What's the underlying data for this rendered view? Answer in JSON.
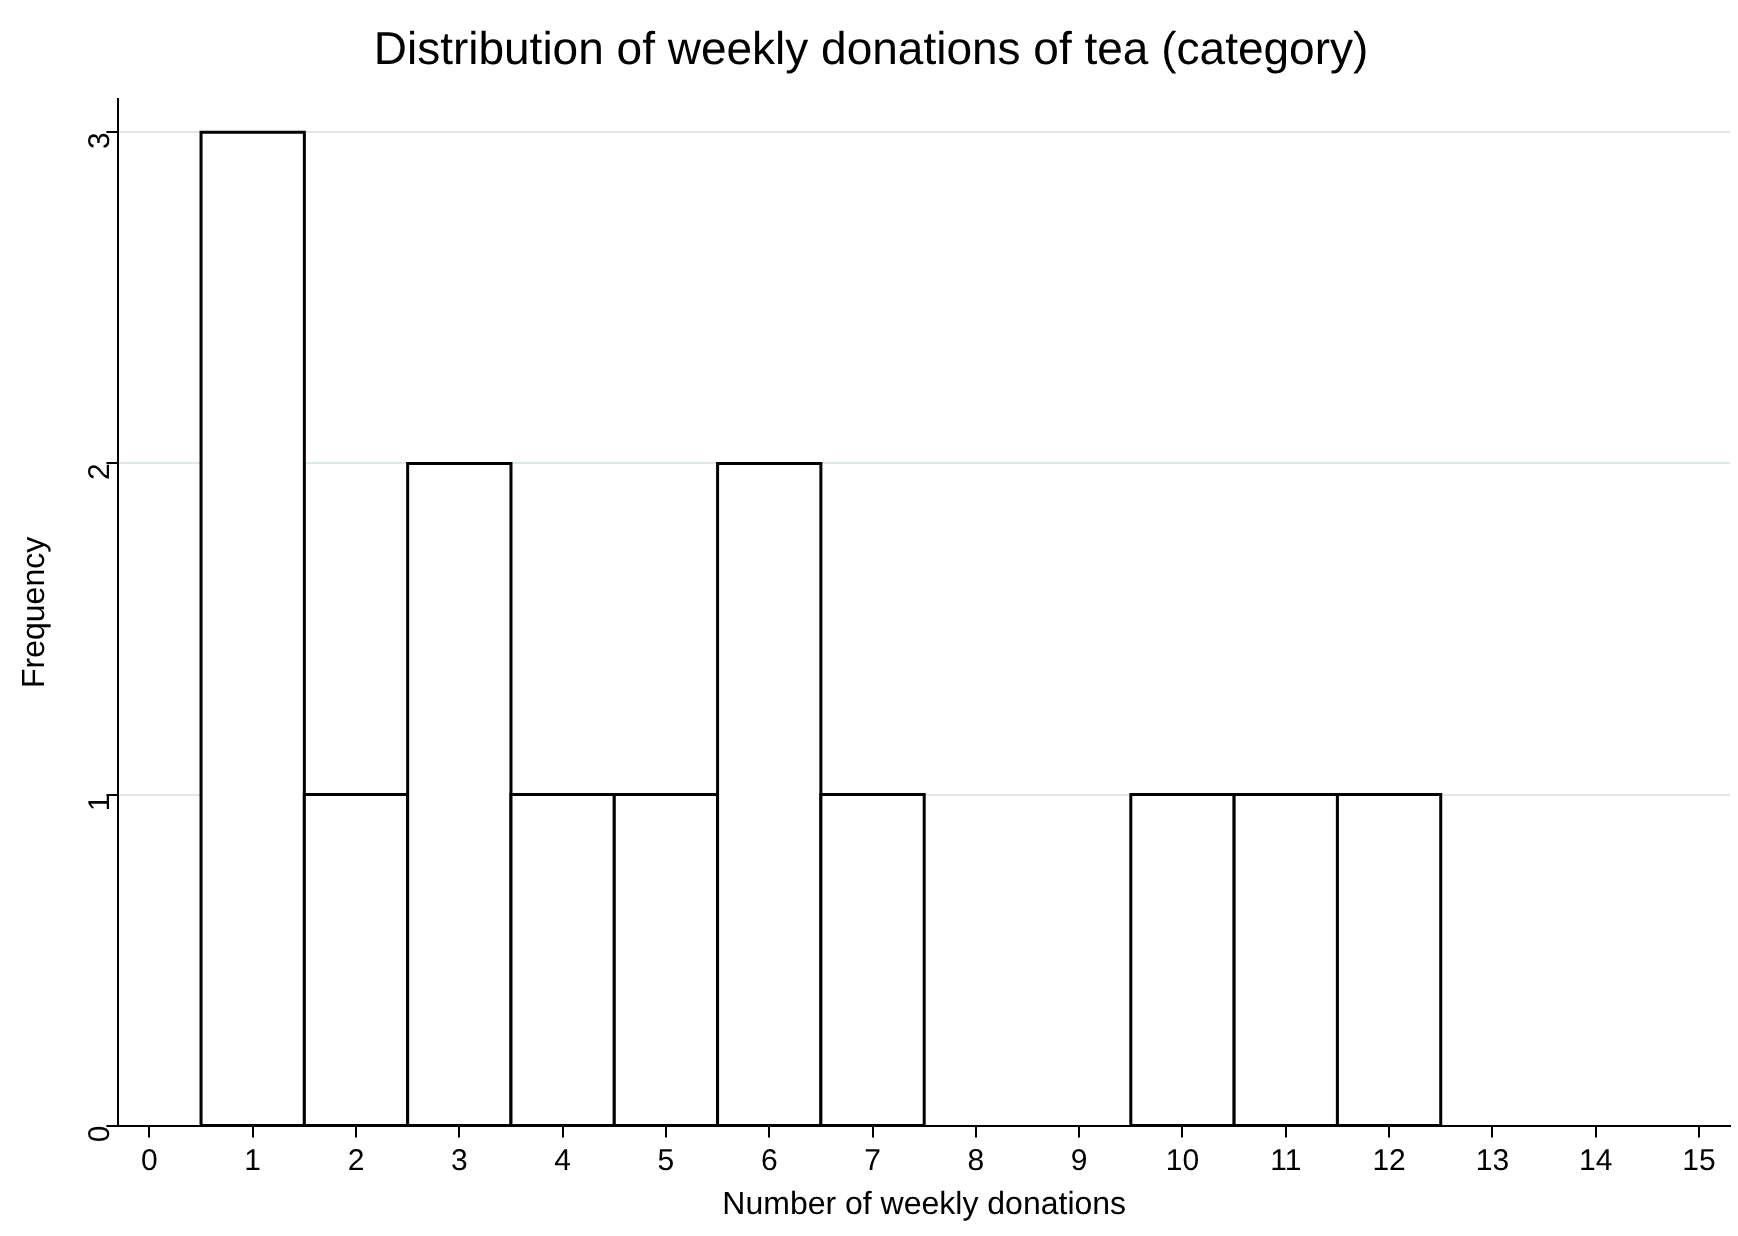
{
  "chart_data": {
    "type": "histogram",
    "title": "Distribution of weekly donations of tea (category)",
    "xlabel": "Number of weekly donations",
    "ylabel": "Frequency",
    "bins": [
      0.5,
      1.5,
      2.5,
      3.5,
      4.5,
      5.5,
      6.5,
      7.5,
      8.5,
      9.5,
      10.5,
      11.5,
      12.5
    ],
    "values": [
      3,
      1,
      2,
      1,
      1,
      2,
      1,
      0,
      0,
      1,
      1,
      1
    ],
    "color": "#ffffff",
    "xlim": [
      -0.3,
      15.3
    ],
    "xticks": [
      0,
      1,
      2,
      3,
      4,
      5,
      6,
      7,
      8,
      9,
      10,
      11,
      12,
      13,
      14,
      15
    ],
    "ylim": [
      0,
      3.1
    ],
    "yticks": [
      0,
      1,
      2,
      3
    ],
    "grid": "y",
    "legend": false
  }
}
